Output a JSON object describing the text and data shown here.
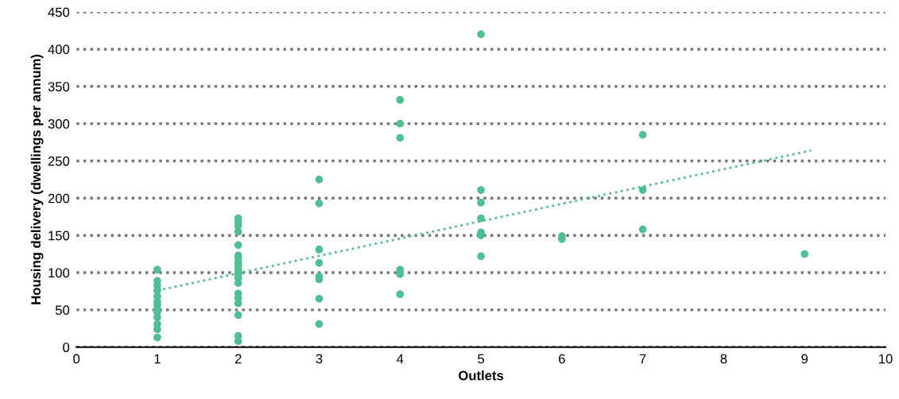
{
  "chart_data": {
    "type": "scatter",
    "xlabel": "Outlets",
    "ylabel": "Housing delivery (dwellings per annum)",
    "xlim": [
      0,
      10
    ],
    "xticks": [
      0,
      1,
      2,
      3,
      4,
      5,
      6,
      7,
      8,
      9,
      10
    ],
    "ylim": [
      0,
      450
    ],
    "yticks": [
      0,
      50,
      100,
      150,
      200,
      250,
      300,
      350,
      400,
      450
    ],
    "grid": "y",
    "legend": false,
    "marker": "circle",
    "series": [
      {
        "color": "#4dbf91",
        "x": [
          1,
          1,
          1,
          1,
          1,
          1,
          1,
          1,
          1,
          1,
          1,
          1,
          1,
          2,
          2,
          2,
          2,
          2,
          2,
          2,
          2,
          2,
          2,
          2,
          2,
          2,
          2,
          2,
          2,
          2,
          2,
          2,
          3,
          3,
          3,
          3,
          3,
          3,
          3,
          3,
          4,
          4,
          4,
          4,
          4,
          4,
          5,
          5,
          5,
          5,
          5,
          5,
          5,
          6,
          6,
          7,
          7,
          7,
          9
        ],
        "values": [
          104,
          89,
          83,
          76,
          68,
          61,
          57,
          51,
          47,
          40,
          31,
          24,
          13,
          173,
          168,
          163,
          155,
          137,
          123,
          120,
          114,
          109,
          104,
          98,
          93,
          86,
          72,
          66,
          59,
          43,
          15,
          8,
          225,
          193,
          131,
          113,
          95,
          91,
          65,
          31,
          332,
          300,
          281,
          104,
          98,
          71,
          420,
          211,
          194,
          173,
          154,
          150,
          122,
          149,
          145,
          285,
          211,
          158,
          125
        ]
      },
      {
        "type": "line",
        "color": "#4dbf91",
        "line_style": "dotted",
        "marker": "none",
        "x": [
          1,
          9.08
        ],
        "values": [
          76,
          264
        ]
      }
    ]
  }
}
